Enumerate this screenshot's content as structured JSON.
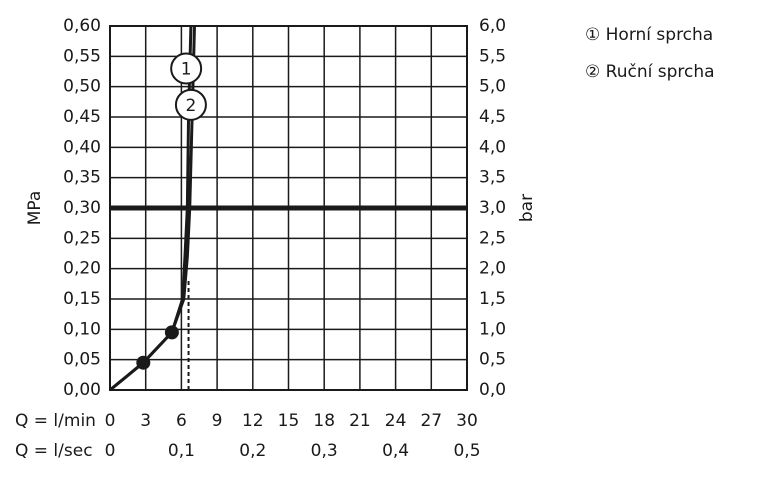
{
  "chart_data": {
    "type": "line",
    "x_label": "Q = l/min",
    "x2_label": "Q = l/sec",
    "y_label": "MPa",
    "y2_label": "bar",
    "xlim": [
      0,
      30
    ],
    "xticks": [
      0,
      3,
      6,
      9,
      12,
      15,
      18,
      21,
      24,
      27,
      30
    ],
    "x2lim": [
      0,
      0.5
    ],
    "x2ticks": [
      {
        "value": 0,
        "label": "0"
      },
      {
        "value": 0.1,
        "label": "0,1"
      },
      {
        "value": 0.2,
        "label": "0,2"
      },
      {
        "value": 0.3,
        "label": "0,3"
      },
      {
        "value": 0.4,
        "label": "0,4"
      },
      {
        "value": 0.5,
        "label": "0,5"
      }
    ],
    "ylim": [
      0,
      0.6
    ],
    "yticks": [
      {
        "value": 0,
        "label": "0,00"
      },
      {
        "value": 0.05,
        "label": "0,05"
      },
      {
        "value": 0.1,
        "label": "0,10"
      },
      {
        "value": 0.15,
        "label": "0,15"
      },
      {
        "value": 0.2,
        "label": "0,20"
      },
      {
        "value": 0.25,
        "label": "0,25"
      },
      {
        "value": 0.3,
        "label": "0,30"
      },
      {
        "value": 0.35,
        "label": "0,35"
      },
      {
        "value": 0.4,
        "label": "0,40"
      },
      {
        "value": 0.45,
        "label": "0,45"
      },
      {
        "value": 0.5,
        "label": "0,50"
      },
      {
        "value": 0.55,
        "label": "0,55"
      },
      {
        "value": 0.6,
        "label": "0,60"
      }
    ],
    "y2lim": [
      0,
      6
    ],
    "y2ticks": [
      {
        "value": 0,
        "label": "0,0"
      },
      {
        "value": 0.5,
        "label": "0,5"
      },
      {
        "value": 1,
        "label": "1,0"
      },
      {
        "value": 1.5,
        "label": "1,5"
      },
      {
        "value": 2,
        "label": "2,0"
      },
      {
        "value": 2.5,
        "label": "2,5"
      },
      {
        "value": 3,
        "label": "3,0"
      },
      {
        "value": 3.5,
        "label": "3,5"
      },
      {
        "value": 4,
        "label": "4,0"
      },
      {
        "value": 4.5,
        "label": "4,5"
      },
      {
        "value": 5,
        "label": "5,0"
      },
      {
        "value": 5.5,
        "label": "5,5"
      },
      {
        "value": 6,
        "label": "6,0"
      }
    ],
    "grid": true,
    "series": [
      {
        "name": "① Horní sprcha",
        "label": "1",
        "color": "#1a1a1a",
        "x": [
          0,
          2.8,
          5.2,
          6.2,
          6.5,
          6.7,
          6.9,
          7.1
        ],
        "values": [
          0,
          0.045,
          0.095,
          0.15,
          0.22,
          0.3,
          0.45,
          0.6
        ],
        "label_at": [
          6.4,
          0.53
        ]
      },
      {
        "name": "② Ruční sprcha",
        "label": "2",
        "color": "#1a1a1a",
        "x": [
          0,
          2.8,
          5.2,
          6.1,
          6.3,
          6.5,
          6.6,
          6.8
        ],
        "values": [
          0,
          0.045,
          0.095,
          0.15,
          0.22,
          0.3,
          0.45,
          0.6
        ],
        "label_at": [
          6.8,
          0.47
        ]
      }
    ],
    "points": {
      "x": [
        2.8,
        5.2
      ],
      "values": [
        0.045,
        0.095
      ]
    },
    "reference_y": 0.3,
    "reference_x": {
      "x": 6.6,
      "y": 0.18
    }
  }
}
